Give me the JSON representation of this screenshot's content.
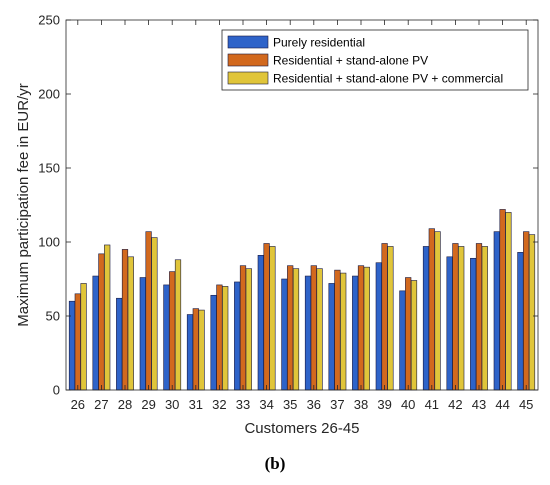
{
  "chart_data": {
    "type": "bar",
    "xlabel": "Customers 26-45",
    "ylabel": "Maximum participation fee in EUR/yr",
    "ylim": [
      0,
      250
    ],
    "yticks": [
      0,
      50,
      100,
      150,
      200,
      250
    ],
    "grid": false,
    "legend_position": "top-right",
    "categories": [
      "26",
      "27",
      "28",
      "29",
      "30",
      "31",
      "32",
      "33",
      "34",
      "35",
      "36",
      "37",
      "38",
      "39",
      "40",
      "41",
      "42",
      "43",
      "44",
      "45"
    ],
    "series": [
      {
        "name": "Purely residential",
        "color": "#2e63c9",
        "values": [
          60,
          77,
          62,
          76,
          71,
          51,
          64,
          73,
          91,
          75,
          77,
          72,
          77,
          86,
          67,
          97,
          90,
          89,
          107,
          93
        ]
      },
      {
        "name": "Residential + stand-alone PV",
        "color": "#d2691e",
        "values": [
          65,
          92,
          95,
          107,
          80,
          55,
          71,
          84,
          99,
          84,
          84,
          81,
          84,
          99,
          76,
          109,
          99,
          99,
          122,
          107
        ]
      },
      {
        "name": "Residential + stand-alone PV + commercial",
        "color": "#e0c53a",
        "values": [
          72,
          98,
          90,
          103,
          88,
          54,
          70,
          82,
          97,
          82,
          82,
          79,
          83,
          97,
          74,
          107,
          97,
          97,
          120,
          105
        ]
      }
    ]
  },
  "caption": "(b)"
}
